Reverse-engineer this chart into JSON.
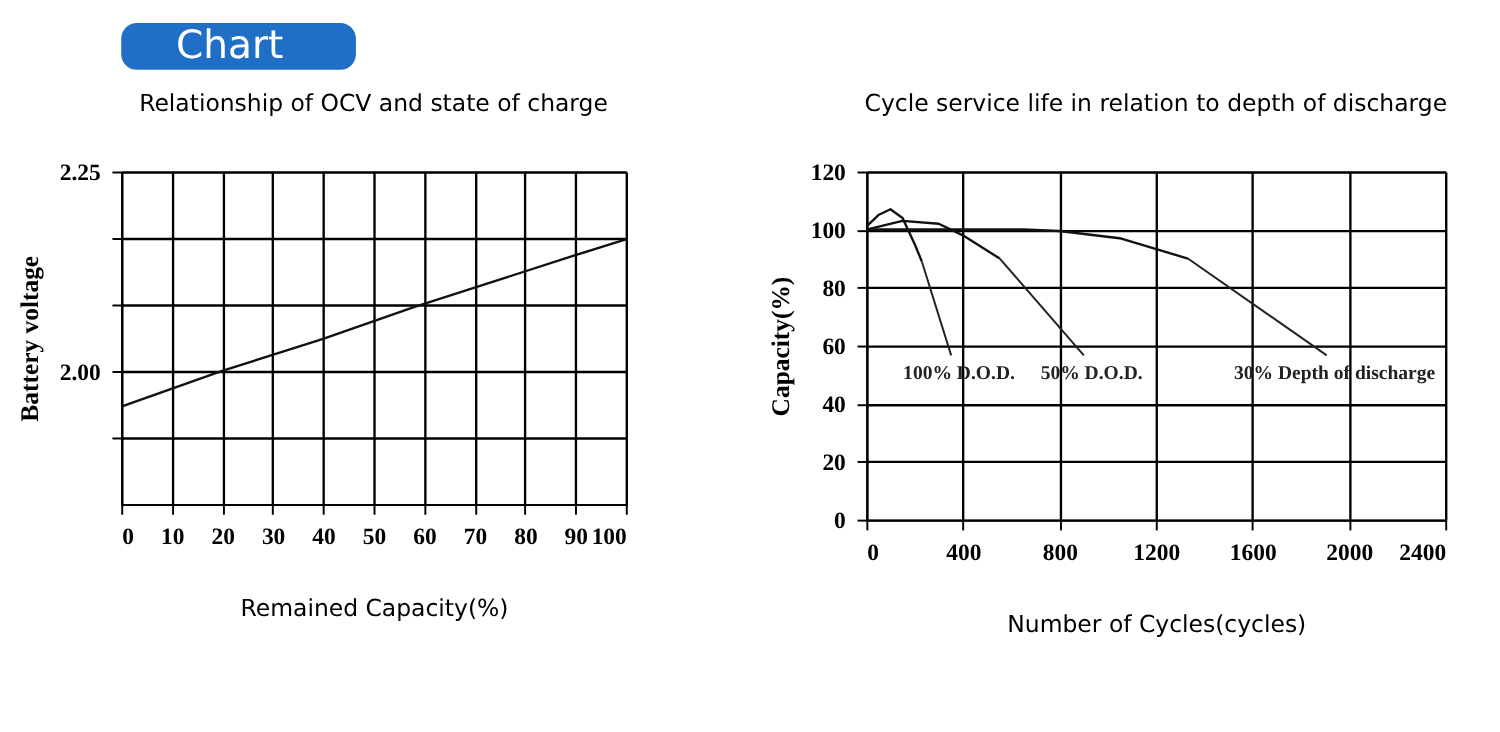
{
  "chart_data": [
    {
      "type": "line",
      "title": "Relationship of OCV and state of charge",
      "xlabel": "Remained Capacity(%)",
      "ylabel": "Battery voltage",
      "annotations": [
        "Chart"
      ],
      "series": [
        {
          "color": "#111111",
          "x": [
            0,
            20,
            40,
            58,
            90,
            100
          ],
          "values": [
            1.955,
            2.0,
            2.04,
            2.08,
            2.145,
            2.165
          ]
        }
      ],
      "xlim": [
        0,
        100
      ],
      "xticks": [
        0,
        10,
        20,
        30,
        40,
        50,
        60,
        70,
        80,
        90,
        100
      ],
      "ylim": [
        1.833,
        2.25
      ],
      "yticks": [
        {
          "value": 1.917,
          "label": null
        },
        {
          "value": 2.0,
          "label": "2.00"
        },
        {
          "value": 2.083,
          "label": null
        },
        {
          "value": 2.167,
          "label": null
        },
        {
          "value": 2.25,
          "label": "2.25"
        }
      ],
      "grid": true,
      "legend": false,
      "marker": "none",
      "line_style": "solid"
    },
    {
      "type": "line",
      "title": "Cycle service life in relation to depth of discharge",
      "xlabel": "Number of Cycles(cycles)",
      "ylabel": "Capacity(%)",
      "annotations": [
        {
          "text": "100% D.O.D.",
          "x": 230,
          "y": 89
        },
        {
          "text": "50% D.O.D.",
          "x": 553,
          "y": 90
        },
        {
          "text": "30% Depth of  discharge",
          "x": 1333,
          "y": 90
        }
      ],
      "series": [
        {
          "color": "#111111",
          "x": [
            0,
            50,
            100,
            150,
            200,
            230
          ],
          "values": [
            101,
            105,
            107,
            104,
            95,
            89
          ]
        },
        {
          "color": "#111111",
          "x": [
            0,
            150,
            300,
            400,
            553
          ],
          "values": [
            100,
            103,
            102,
            98,
            90
          ]
        },
        {
          "color": "#111111",
          "x": [
            0,
            650,
            800,
            1050,
            1333
          ],
          "values": [
            100,
            100,
            99.5,
            97,
            90
          ]
        }
      ],
      "xlim": [
        0,
        2400
      ],
      "xticks": [
        0,
        400,
        800,
        1200,
        1600,
        2000,
        2400
      ],
      "ylim": [
        0,
        120
      ],
      "yticks": [
        0,
        20,
        40,
        60,
        80,
        100,
        120
      ],
      "grid": true,
      "legend": false,
      "marker": "none",
      "line_style": "solid"
    }
  ]
}
